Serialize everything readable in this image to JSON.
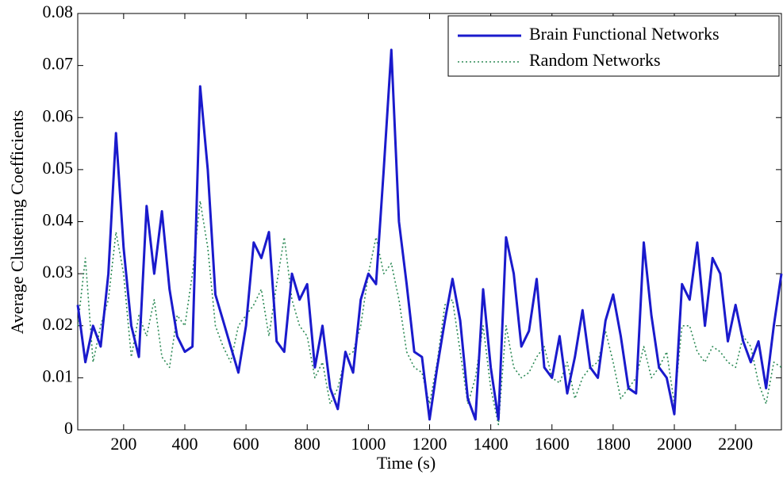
{
  "chart_data": {
    "type": "line",
    "xlabel": "Time (s)",
    "ylabel": "Average Clustering Coefficients",
    "x": [
      50,
      75,
      100,
      125,
      150,
      175,
      200,
      225,
      250,
      275,
      300,
      325,
      350,
      375,
      400,
      425,
      450,
      475,
      500,
      525,
      550,
      575,
      600,
      625,
      650,
      675,
      700,
      725,
      750,
      775,
      800,
      825,
      850,
      875,
      900,
      925,
      950,
      975,
      1000,
      1025,
      1050,
      1075,
      1100,
      1125,
      1150,
      1175,
      1200,
      1225,
      1250,
      1275,
      1300,
      1325,
      1350,
      1375,
      1400,
      1425,
      1450,
      1475,
      1500,
      1525,
      1550,
      1575,
      1600,
      1625,
      1650,
      1675,
      1700,
      1725,
      1750,
      1775,
      1800,
      1825,
      1850,
      1875,
      1900,
      1925,
      1950,
      1975,
      2000,
      2025,
      2050,
      2075,
      2100,
      2125,
      2150,
      2175,
      2200,
      2225,
      2250,
      2275,
      2300,
      2325,
      2350
    ],
    "series": [
      {
        "name": "Brain Functional Networks",
        "color": "#1a1acc",
        "style": "solid",
        "values": [
          0.024,
          0.013,
          0.02,
          0.016,
          0.03,
          0.057,
          0.035,
          0.02,
          0.014,
          0.043,
          0.03,
          0.042,
          0.027,
          0.018,
          0.015,
          0.016,
          0.066,
          0.05,
          0.026,
          0.021,
          0.016,
          0.011,
          0.02,
          0.036,
          0.033,
          0.038,
          0.017,
          0.015,
          0.03,
          0.025,
          0.028,
          0.012,
          0.02,
          0.008,
          0.004,
          0.015,
          0.011,
          0.025,
          0.03,
          0.028,
          0.05,
          0.073,
          0.04,
          0.028,
          0.015,
          0.014,
          0.002,
          0.012,
          0.021,
          0.029,
          0.021,
          0.006,
          0.002,
          0.027,
          0.012,
          0.002,
          0.037,
          0.03,
          0.016,
          0.019,
          0.029,
          0.012,
          0.01,
          0.018,
          0.007,
          0.014,
          0.023,
          0.012,
          0.01,
          0.021,
          0.026,
          0.018,
          0.008,
          0.007,
          0.036,
          0.022,
          0.012,
          0.01,
          0.003,
          0.028,
          0.025,
          0.036,
          0.02,
          0.033,
          0.03,
          0.017,
          0.024,
          0.017,
          0.013,
          0.017,
          0.008,
          0.02,
          0.03
        ]
      },
      {
        "name": "Random Networks",
        "color": "#2e8b57",
        "style": "dotted",
        "values": [
          0.02,
          0.033,
          0.013,
          0.02,
          0.025,
          0.038,
          0.03,
          0.014,
          0.022,
          0.018,
          0.025,
          0.014,
          0.012,
          0.022,
          0.02,
          0.03,
          0.044,
          0.035,
          0.02,
          0.016,
          0.013,
          0.02,
          0.022,
          0.024,
          0.027,
          0.018,
          0.028,
          0.037,
          0.025,
          0.02,
          0.018,
          0.01,
          0.013,
          0.005,
          0.008,
          0.014,
          0.015,
          0.02,
          0.03,
          0.037,
          0.03,
          0.032,
          0.025,
          0.015,
          0.012,
          0.011,
          0.005,
          0.013,
          0.024,
          0.025,
          0.015,
          0.005,
          0.01,
          0.02,
          0.008,
          0.001,
          0.02,
          0.012,
          0.01,
          0.011,
          0.014,
          0.016,
          0.01,
          0.009,
          0.013,
          0.006,
          0.01,
          0.012,
          0.013,
          0.019,
          0.013,
          0.006,
          0.008,
          0.01,
          0.016,
          0.01,
          0.012,
          0.015,
          0.005,
          0.02,
          0.02,
          0.015,
          0.013,
          0.016,
          0.015,
          0.013,
          0.012,
          0.018,
          0.016,
          0.009,
          0.005,
          0.013,
          0.012
        ]
      }
    ],
    "xlim": [
      50,
      2350
    ],
    "ylim": [
      0,
      0.08
    ],
    "xticks": [
      200,
      400,
      600,
      800,
      1000,
      1200,
      1400,
      1600,
      1800,
      2000,
      2200
    ],
    "yticks": [
      0,
      0.01,
      0.02,
      0.03,
      0.04,
      0.05,
      0.06,
      0.07,
      0.08
    ],
    "grid": false,
    "legend": "upper right"
  }
}
